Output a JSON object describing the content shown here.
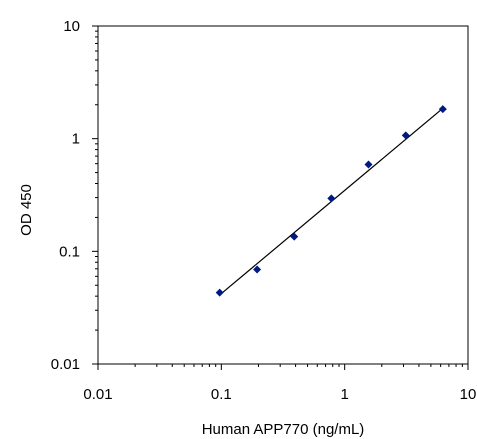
{
  "chart_data": {
    "type": "scatter",
    "title": "",
    "xlabel": "Human APP770 (ng/mL)",
    "ylabel": "OD 450",
    "x_scale": "log",
    "y_scale": "log",
    "xlim": [
      0.01,
      10
    ],
    "ylim": [
      0.01,
      10
    ],
    "x_tick_labels": [
      "0.01",
      "0.1",
      "1",
      "10"
    ],
    "y_tick_labels": [
      "0.01",
      "0.1",
      "1",
      "10"
    ],
    "grid": false,
    "legend": "none",
    "series": [
      {
        "kind": "points",
        "x": [
          0.097,
          0.195,
          0.39,
          0.78,
          1.56,
          3.13,
          6.25
        ],
        "y": [
          0.043,
          0.069,
          0.135,
          0.295,
          0.59,
          1.07,
          1.83
        ],
        "color": "#001a80",
        "marker": "diamond"
      },
      {
        "kind": "fit-line",
        "x": [
          0.097,
          6.25
        ],
        "y": [
          0.041,
          1.86
        ],
        "color": "#000000"
      }
    ]
  }
}
